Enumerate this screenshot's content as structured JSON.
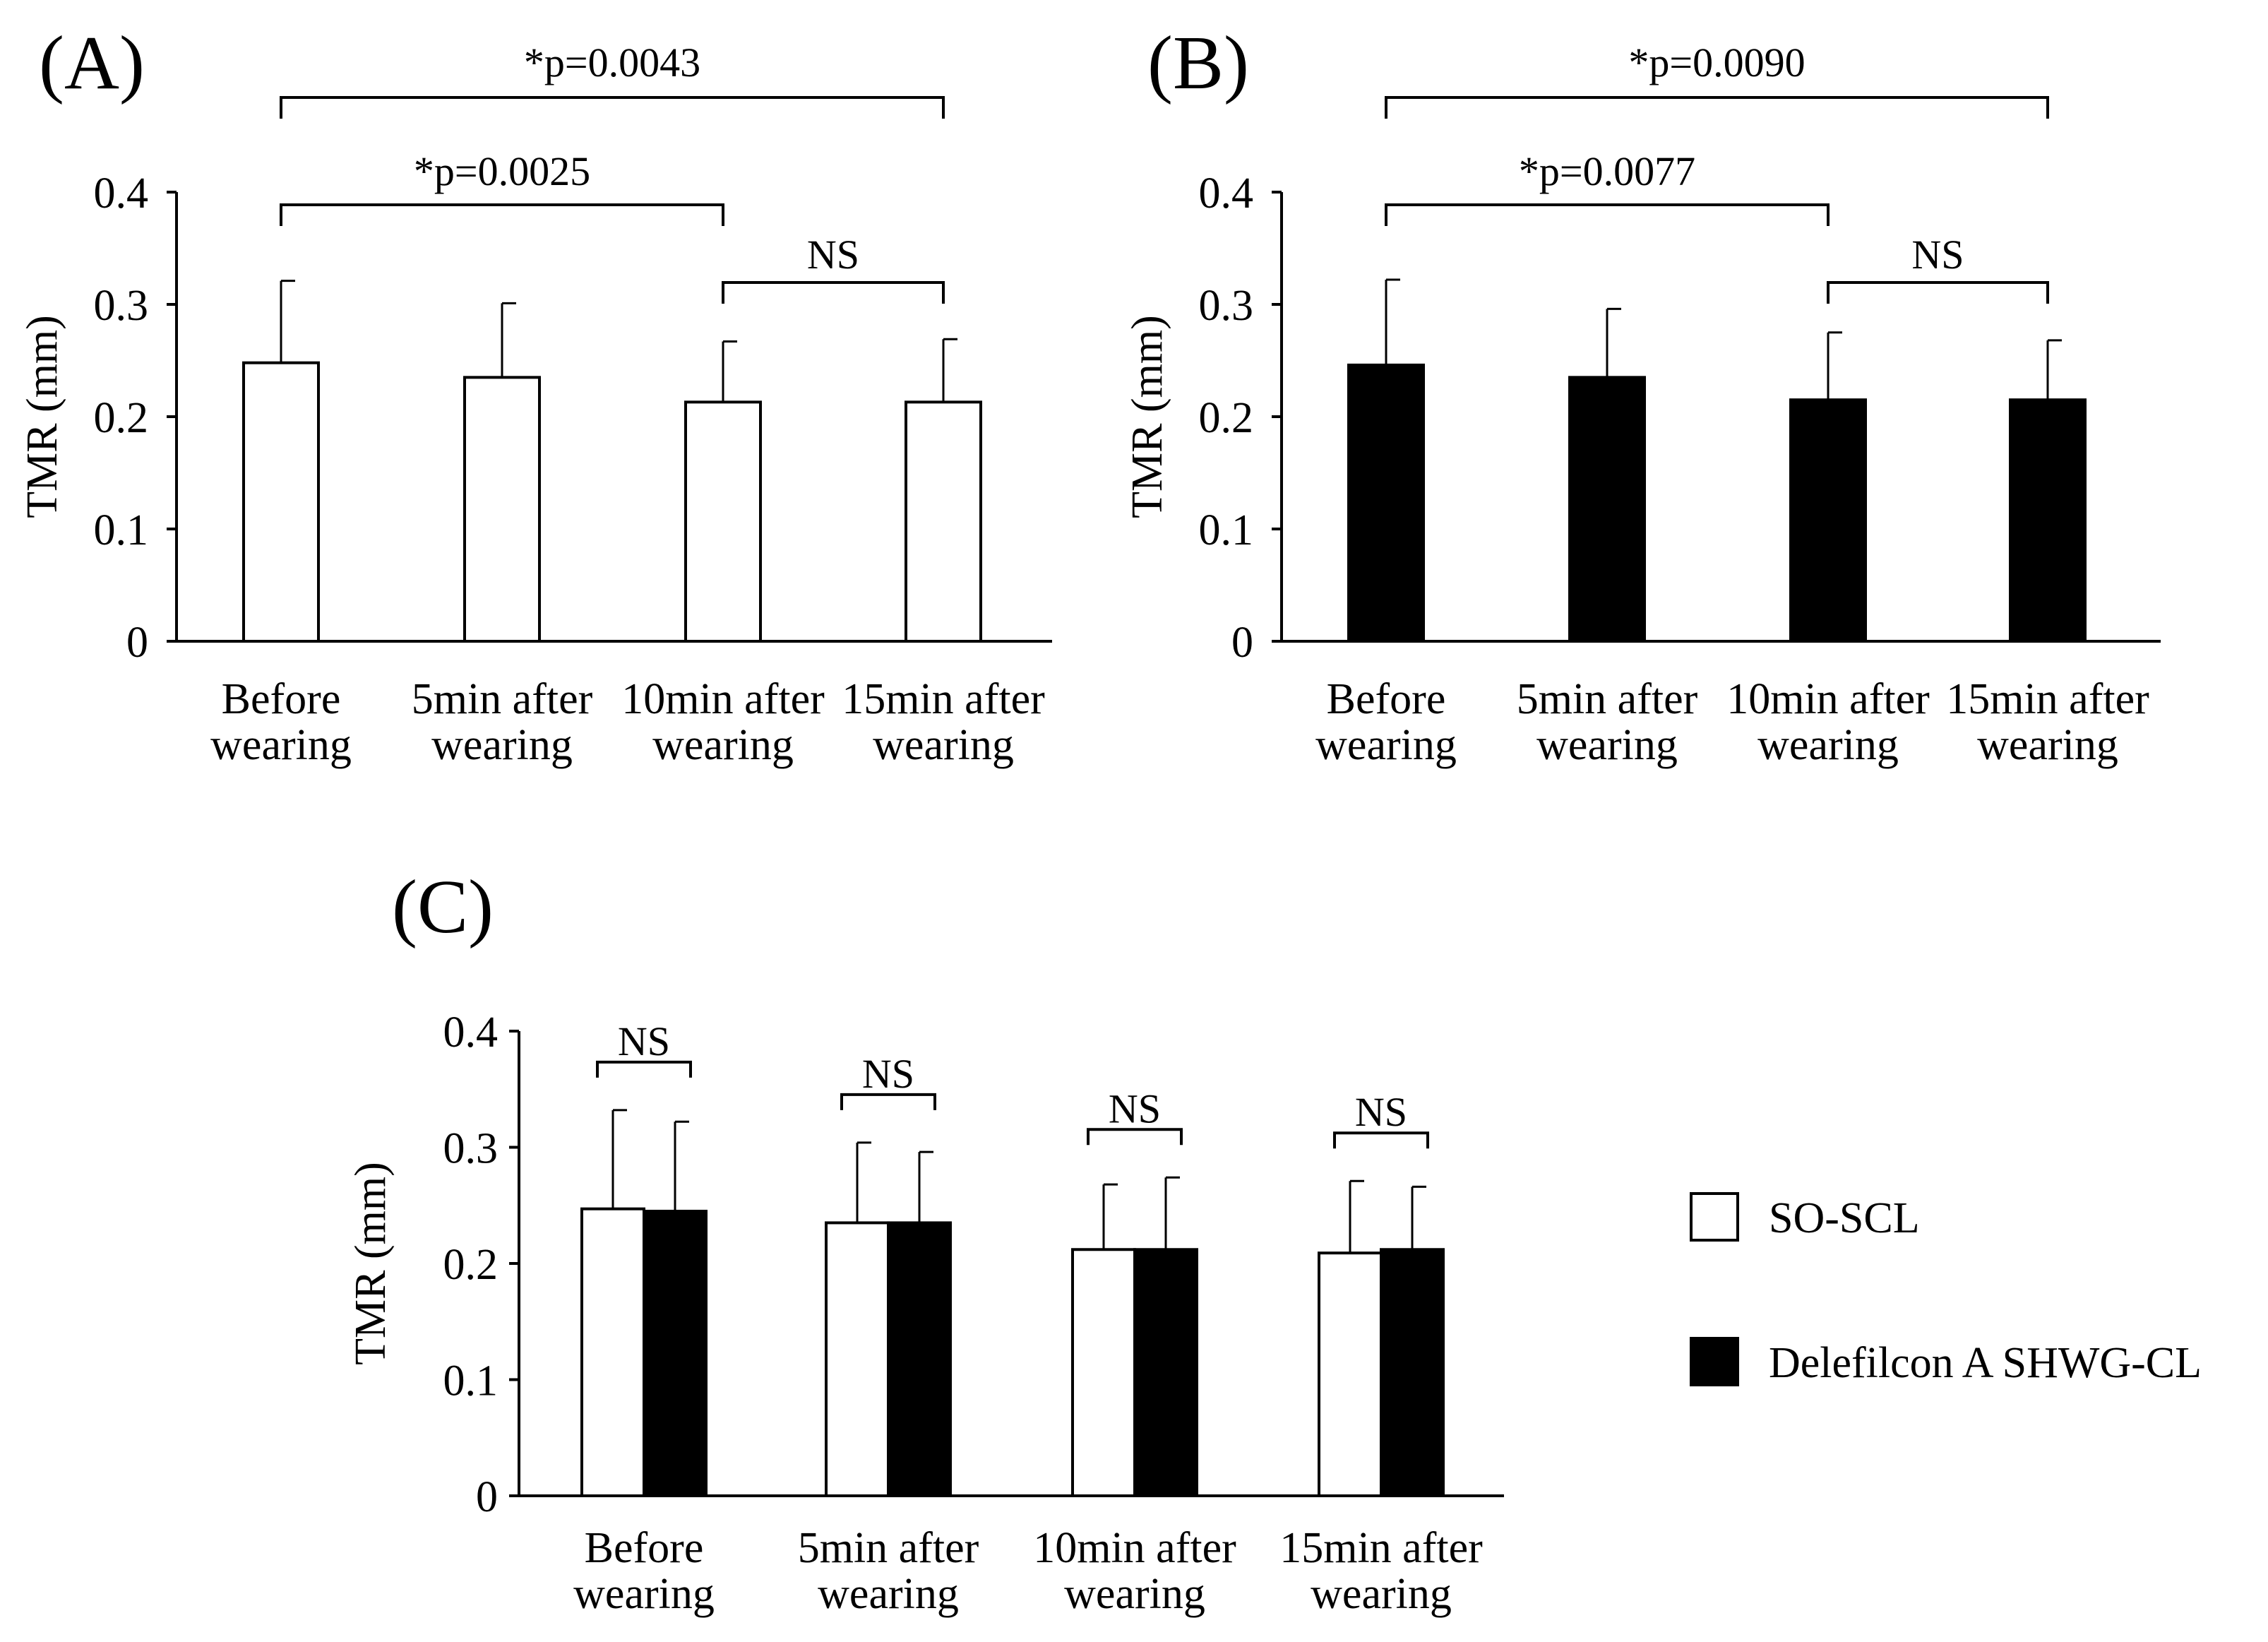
{
  "colors": {
    "so_scl": "#ffffff",
    "delefilcon": "#000000",
    "axis": "#000000"
  },
  "legend": [
    {
      "name": "SO-SCL",
      "color": "#ffffff"
    },
    {
      "name": "Delefilcon A SHWG-CL",
      "color": "#000000"
    }
  ],
  "chart_data": [
    {
      "panel": "(A)",
      "type": "bar",
      "ylabel": "TMR (mm)",
      "ylim": [
        0,
        0.4
      ],
      "yticks": [
        "0",
        "0.1",
        "0.2",
        "0.3",
        "0.4"
      ],
      "categories": [
        [
          "Before",
          "wearing"
        ],
        [
          "5min after",
          "wearing"
        ],
        [
          "10min after",
          "wearing"
        ],
        [
          "15min after",
          "wearing"
        ]
      ],
      "series": [
        {
          "name": "SO-SCL",
          "values": [
            0.248,
            0.235,
            0.213,
            0.213
          ],
          "errors": [
            0.073,
            0.066,
            0.054,
            0.056
          ]
        }
      ],
      "significance": [
        {
          "from": 0,
          "to": 3,
          "label": "*p=0.0043"
        },
        {
          "from": 0,
          "to": 2,
          "label": "*p=0.0025"
        },
        {
          "from": 2,
          "to": 3,
          "label": "NS"
        }
      ]
    },
    {
      "panel": "(B)",
      "type": "bar",
      "ylabel": "TMR (mm)",
      "ylim": [
        0,
        0.4
      ],
      "yticks": [
        "0",
        "0.1",
        "0.2",
        "0.3",
        "0.4"
      ],
      "categories": [
        [
          "Before",
          "wearing"
        ],
        [
          "5min after",
          "wearing"
        ],
        [
          "10min after",
          "wearing"
        ],
        [
          "15min after",
          "wearing"
        ]
      ],
      "series": [
        {
          "name": "Delefilcon A SHWG-CL",
          "values": [
            0.246,
            0.235,
            0.215,
            0.215
          ],
          "errors": [
            0.076,
            0.061,
            0.06,
            0.053
          ]
        }
      ],
      "significance": [
        {
          "from": 0,
          "to": 3,
          "label": "*p=0.0090"
        },
        {
          "from": 0,
          "to": 2,
          "label": "*p=0.0077"
        },
        {
          "from": 2,
          "to": 3,
          "label": "NS"
        }
      ]
    },
    {
      "panel": "(C)",
      "type": "bar",
      "ylabel": "TMR (mm)",
      "ylim": [
        0,
        0.4
      ],
      "yticks": [
        "0",
        "0.1",
        "0.2",
        "0.3",
        "0.4"
      ],
      "categories": [
        [
          "Before",
          "wearing"
        ],
        [
          "5min after",
          "wearing"
        ],
        [
          "10min after",
          "wearing"
        ],
        [
          "15min after",
          "wearing"
        ]
      ],
      "series": [
        {
          "name": "SO-SCL",
          "values": [
            0.247,
            0.235,
            0.212,
            0.209
          ],
          "errors": [
            0.085,
            0.069,
            0.056,
            0.062
          ]
        },
        {
          "name": "Delefilcon A SHWG-CL",
          "values": [
            0.245,
            0.235,
            0.212,
            0.212
          ],
          "errors": [
            0.077,
            0.061,
            0.062,
            0.054
          ]
        }
      ],
      "significance": [
        {
          "group": 0,
          "label": "NS"
        },
        {
          "group": 1,
          "label": "NS"
        },
        {
          "group": 2,
          "label": "NS"
        },
        {
          "group": 3,
          "label": "NS"
        }
      ]
    }
  ]
}
